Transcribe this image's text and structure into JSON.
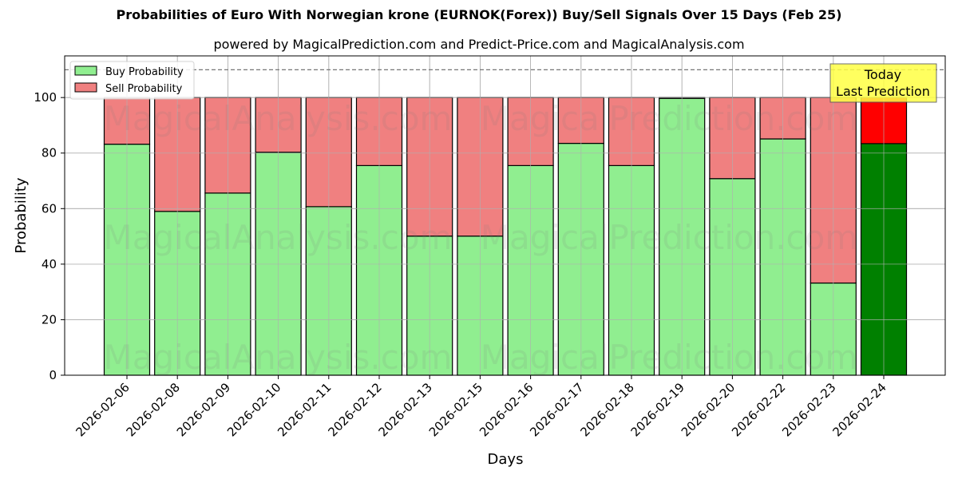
{
  "title": "Probabilities of Euro With Norwegian krone (EURNOK(Forex)) Buy/Sell Signals Over 15 Days (Feb 25)",
  "subtitle": "powered by MagicalPrediction.com and Predict-Price.com and MagicalAnalysis.com",
  "watermarks": [
    "MagicalAnalysis.com",
    "MagicalPrediction.com"
  ],
  "annotation": {
    "line1": "Today",
    "line2": "Last Prediction"
  },
  "colors": {
    "buy": "#90EE90",
    "sell": "#F08080",
    "buy_today": "#008000",
    "sell_today": "#FF0000",
    "annotation_bg": "#FFFF44"
  },
  "chart_data": {
    "type": "bar",
    "stacked": true,
    "title": "Probabilities of Euro With Norwegian krone (EURNOK(Forex)) Buy/Sell Signals Over 15 Days (Feb 25)",
    "subtitle": "powered by MagicalPrediction.com and Predict-Price.com and MagicalAnalysis.com",
    "xlabel": "Days",
    "ylabel": "Probability",
    "ylim": [
      0,
      115
    ],
    "yticks": [
      0,
      20,
      40,
      60,
      80,
      100
    ],
    "grid": true,
    "legend_position": "upper left",
    "reference_line": 110,
    "categories": [
      "2026-02-06",
      "2026-02-08",
      "2026-02-09",
      "2026-02-10",
      "2026-02-11",
      "2026-02-12",
      "2026-02-13",
      "2026-02-15",
      "2026-02-16",
      "2026-02-17",
      "2026-02-18",
      "2026-02-19",
      "2026-02-20",
      "2026-02-22",
      "2026-02-23",
      "2026-02-24"
    ],
    "series": [
      {
        "name": "Buy Probability",
        "values": [
          83.2,
          59.0,
          65.6,
          80.3,
          60.7,
          75.5,
          50.1,
          50.1,
          75.5,
          83.5,
          75.5,
          99.7,
          70.8,
          85.1,
          33.2,
          83.4
        ]
      },
      {
        "name": "Sell Probability",
        "values": [
          16.8,
          41.0,
          34.4,
          19.7,
          39.3,
          24.5,
          49.9,
          49.9,
          24.5,
          16.5,
          24.5,
          0.3,
          29.2,
          14.9,
          66.8,
          16.6
        ]
      }
    ]
  }
}
